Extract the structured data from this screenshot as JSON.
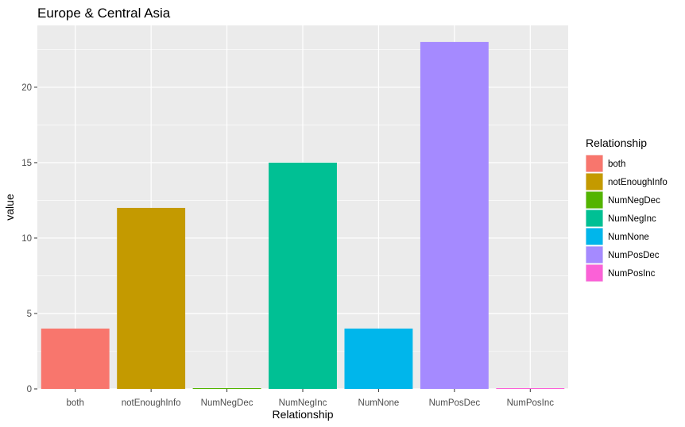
{
  "chart_data": {
    "type": "bar",
    "title": "Europe & Central Asia",
    "xlabel": "Relationship",
    "ylabel": "value",
    "categories": [
      "both",
      "notEnoughInfo",
      "NumNegDec",
      "NumNegInc",
      "NumNone",
      "NumPosDec",
      "NumPosInc"
    ],
    "values": [
      4,
      12,
      0,
      15,
      4,
      23,
      0
    ],
    "colors": [
      "#F8766D",
      "#C49A00",
      "#53B400",
      "#00C094",
      "#00B6EB",
      "#A58AFF",
      "#FB61D7"
    ],
    "ylim": [
      0,
      24.1
    ],
    "yticks": [
      0,
      5,
      10,
      15,
      20
    ],
    "grid": true,
    "panel_background": "#EBEBEB",
    "legend": {
      "title": "Relationship",
      "placement": "right",
      "entries": [
        "both",
        "notEnoughInfo",
        "NumNegDec",
        "NumNegInc",
        "NumNone",
        "NumPosDec",
        "NumPosInc"
      ]
    }
  }
}
